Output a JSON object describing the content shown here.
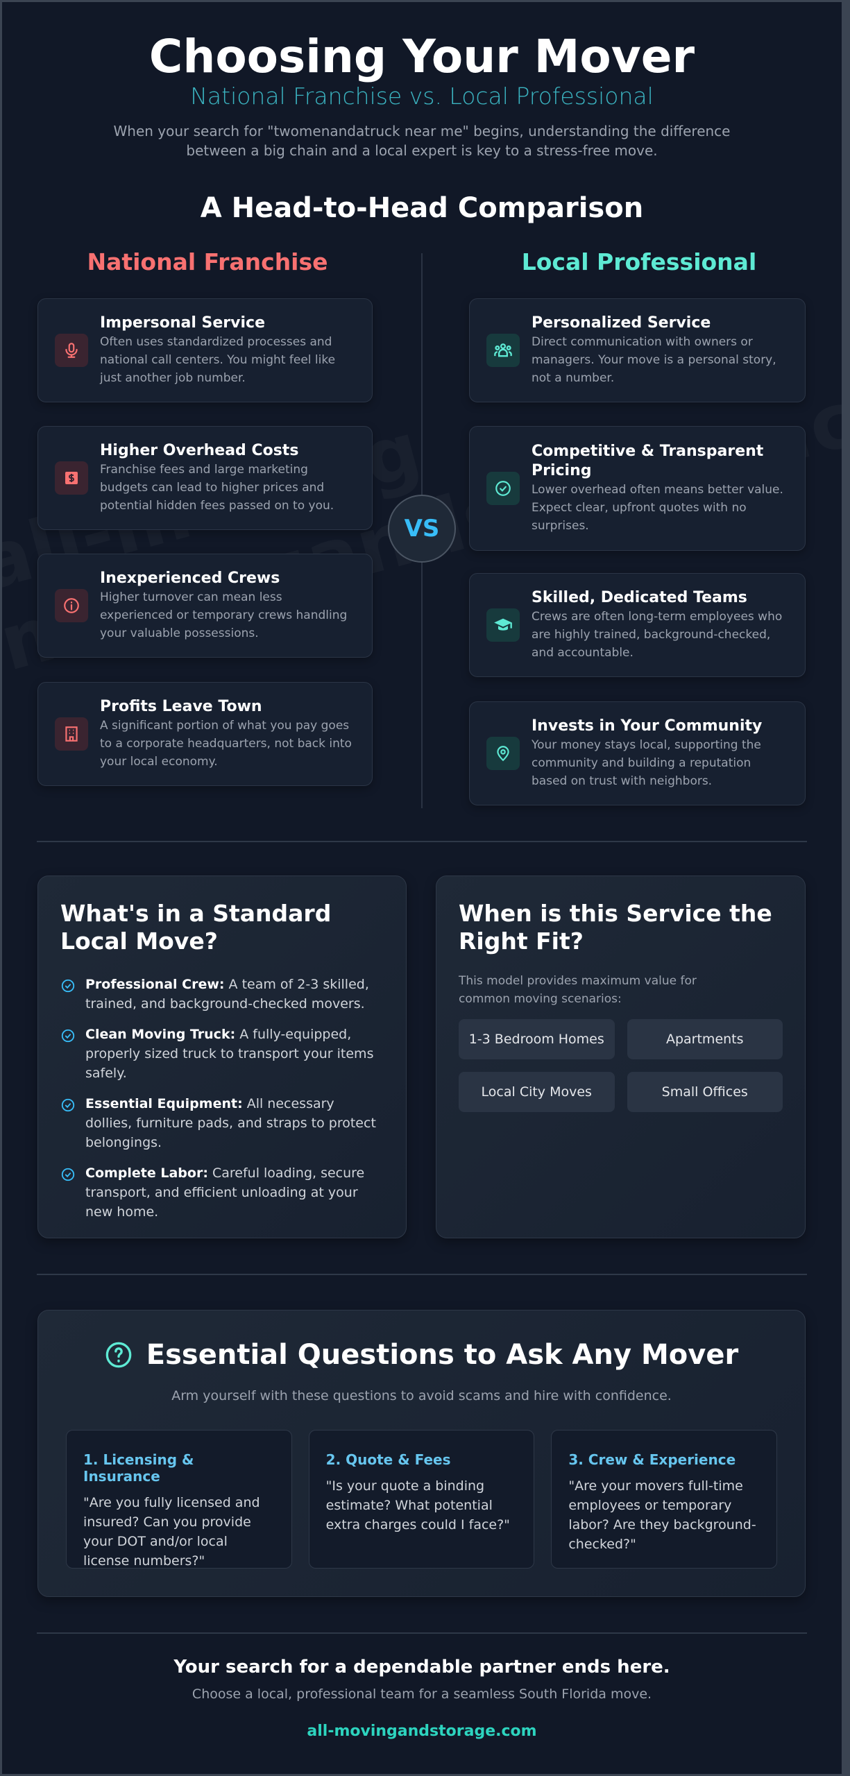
{
  "header": {
    "title": "Choosing Your Mover",
    "subtitle": "National Franchise vs. Local Professional",
    "intro": "When your search for \"twomenandatruck near me\" begins, understanding the difference between a big chain and a local expert is key to a stress-free move."
  },
  "watermark": "all-movingandstorage.com",
  "comparison": {
    "title": "A Head-to-Head Comparison",
    "vs": "VS",
    "national": {
      "heading": "National Franchise",
      "color": "#f87171",
      "items": [
        {
          "icon": "microphone-icon",
          "title": "Impersonal Service",
          "desc": "Often uses standardized processes and national call centers. You might feel like just another job number."
        },
        {
          "icon": "dollar-bill-icon",
          "title": "Higher Overhead Costs",
          "desc": "Franchise fees and large marketing budgets can lead to higher prices and potential hidden fees passed on to you."
        },
        {
          "icon": "info-circle-icon",
          "title": "Inexperienced Crews",
          "desc": "Higher turnover can mean less experienced or temporary crews handling your valuable possessions."
        },
        {
          "icon": "building-icon",
          "title": "Profits Leave Town",
          "desc": "A significant portion of what you pay goes to a corporate headquarters, not back into your local economy."
        }
      ]
    },
    "local": {
      "heading": "Local Professional",
      "color": "#5eead4",
      "items": [
        {
          "icon": "users-icon",
          "title": "Personalized Service",
          "desc": "Direct communication with owners or managers. Your move is a personal story, not a number."
        },
        {
          "icon": "check-circle-icon",
          "title": "Competitive & Transparent Pricing",
          "desc": "Lower overhead often means better value. Expect clear, upfront quotes with no surprises."
        },
        {
          "icon": "graduation-cap-icon",
          "title": "Skilled, Dedicated Teams",
          "desc": "Crews are often long-term employees who are highly trained, background-checked, and accountable."
        },
        {
          "icon": "map-pin-icon",
          "title": "Invests in Your Community",
          "desc": "Your money stays local, supporting the community and building a reputation based on trust with neighbors."
        }
      ]
    }
  },
  "standard_move": {
    "title": "What's in a Standard Local Move?",
    "items": [
      {
        "label": "Professional Crew:",
        "text": " A team of 2-3 skilled, trained, and background-checked movers."
      },
      {
        "label": "Clean Moving Truck:",
        "text": " A fully-equipped, properly sized truck to transport your items safely."
      },
      {
        "label": "Essential Equipment:",
        "text": " All necessary dollies, furniture pads, and straps to protect belongings."
      },
      {
        "label": "Complete Labor:",
        "text": " Careful loading, secure transport, and efficient unloading at your new home."
      }
    ]
  },
  "right_fit": {
    "title": "When is this Service the Right Fit?",
    "desc": "This model provides maximum value for common moving scenarios:",
    "chips": [
      "1-3 Bedroom Homes",
      "Apartments",
      "Local City Moves",
      "Small Offices"
    ]
  },
  "questions": {
    "title": "Essential Questions to Ask Any Mover",
    "subtitle": "Arm yourself with these questions to avoid scams and hire with confidence.",
    "items": [
      {
        "title": "1. Licensing & Insurance",
        "text": "\"Are you fully licensed and insured? Can you provide your DOT and/or local license numbers?\""
      },
      {
        "title": "2. Quote & Fees",
        "text": "\"Is your quote a binding estimate? What potential extra charges could I face?\""
      },
      {
        "title": "3. Crew & Experience",
        "text": "\"Are your movers full-time employees or temporary labor? Are they background-checked?\""
      }
    ]
  },
  "footer": {
    "headline": "Your search for a dependable partner ends here.",
    "sub": "Choose a local, professional team for a seamless South Florida move.",
    "link": "all-movingandstorage.com"
  }
}
